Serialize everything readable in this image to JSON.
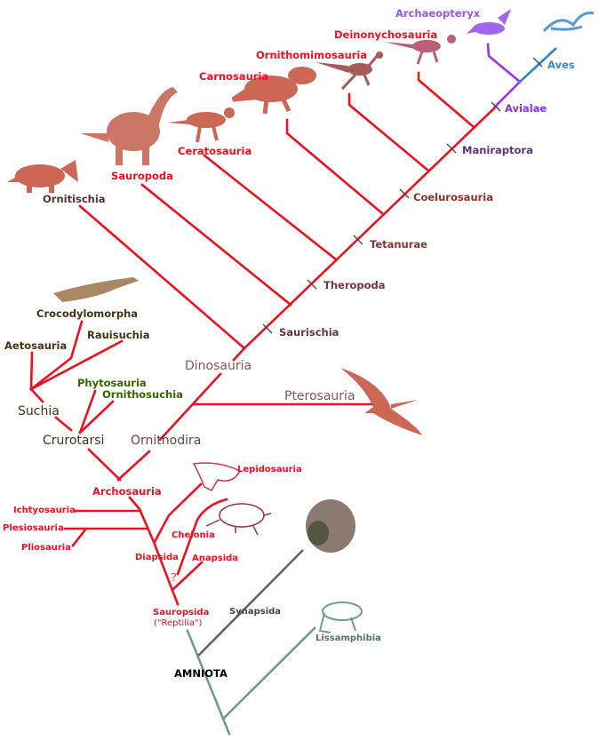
{
  "colors": {
    "lineage_red": "#ee1122",
    "avialae_purple": "#9933ee",
    "aves_blue": "#3388cc",
    "synapsida_gray": "#666666",
    "amphibia_teal": "#6f9a98",
    "label_red": "#ee1122",
    "label_brown": "#883333",
    "label_dark": "#443311",
    "label_green": "#336600"
  },
  "labels": {
    "archaeopteryx": "Archaeopteryx",
    "aves": "Aves",
    "deinonychosauria": "Deinonychosauria",
    "ornithomimosauria": "Ornithomimosauria",
    "carnosauria": "Carnosauria",
    "avialae": "Avialae",
    "maniraptora": "Maniraptora",
    "ceratosauria": "Ceratosauria",
    "sauropoda": "Sauropoda",
    "ornitischia": "Ornitischia",
    "coelurosauria": "Coelurosauria",
    "tetanurae": "Tetanurae",
    "theropoda": "Theropoda",
    "saurischia": "Saurischia",
    "dinosauria": "Dinosauria",
    "pterosauria": "Pterosauria",
    "crocodylomorpha": "Crocodylomorpha",
    "rauisuchia": "Rauisuchia",
    "aetosauria": "Aetosauria",
    "phytosauria": "Phytosauria",
    "ornithosuchia": "Ornithosuchia",
    "suchia": "Suchia",
    "crurotarsi": "Crurotarsi",
    "ornithodira": "Ornithodira",
    "archosauria": "Archosauria",
    "lepidosauria": "Lepidosauria",
    "ichtyosauria": "Ichtyosauria",
    "plesiosauria": "Plesiosauria",
    "pliosauria": "Pliosauria",
    "chelonia": "Chelonia",
    "diapsida": "Diapsida",
    "anapsida": "Anapsida",
    "question": "?",
    "sauropsida": "Sauropsida",
    "reptilia": "(\"Reptilia\")",
    "synapsida": "Synapsida",
    "amniota": "AMNIOTA",
    "lissamphibia": "Lissamphibia"
  }
}
